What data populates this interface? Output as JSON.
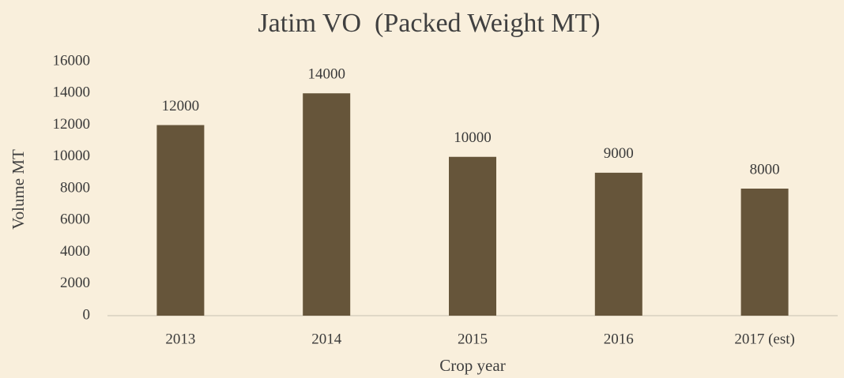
{
  "chart_data": {
    "type": "bar",
    "title": "Jatim VO  (Packed Weight MT)",
    "categories": [
      "2013",
      "2014",
      "2015",
      "2016",
      "2017 (est)"
    ],
    "values": [
      12000,
      14000,
      10000,
      9000,
      8000
    ],
    "color": "#66553a",
    "xlabel": "Crop year",
    "ylabel": "Volume MT",
    "ylim": [
      0,
      16000
    ],
    "yticks": [
      0,
      2000,
      4000,
      6000,
      8000,
      10000,
      12000,
      14000,
      16000
    ],
    "grid": false,
    "data_labels": true
  }
}
